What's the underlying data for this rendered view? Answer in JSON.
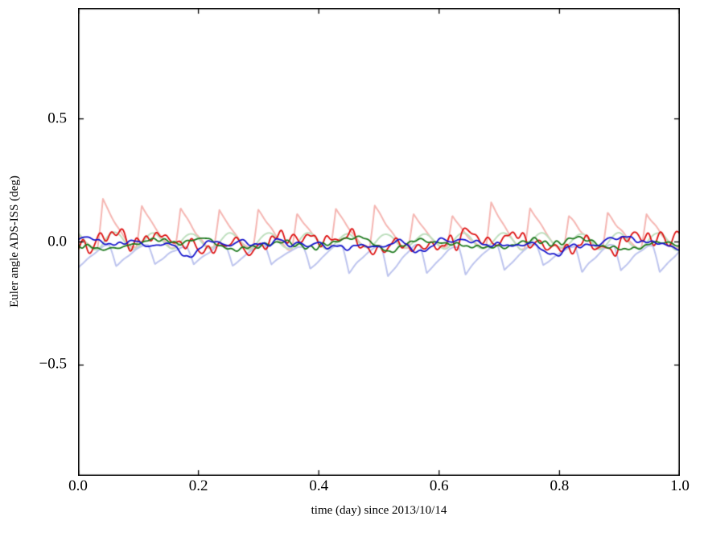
{
  "figure": {
    "background": "#ffffff",
    "frame_color": "#000000"
  },
  "chart_data": {
    "type": "line",
    "title": "",
    "xlabel": "time (day) since 2013/10/14",
    "ylabel": "Euler angle ADS-ISS (deg)",
    "xlim": [
      0.0,
      1.0
    ],
    "ylim": [
      -0.95,
      0.95
    ],
    "grid": false,
    "legend": "none",
    "tick_direction": "in",
    "cycles_per_day": 15.5,
    "n_points": 1500,
    "xticks": [
      {
        "label": "0.0",
        "value": 0.0
      },
      {
        "label": "0.2",
        "value": 0.2
      },
      {
        "label": "0.4",
        "value": 0.4
      },
      {
        "label": "0.6",
        "value": 0.6
      },
      {
        "label": "0.8",
        "value": 0.8
      },
      {
        "label": "1.0",
        "value": 1.0
      }
    ],
    "yticks": [
      {
        "label": "0.5",
        "value": 0.5
      },
      {
        "label": "0.0",
        "value": 0.0
      },
      {
        "label": "−0.5",
        "value": -0.5
      }
    ],
    "series": [
      {
        "name": "pale-red-raw",
        "description": "periodic upward spikes to ~+0.15 deg, ~15.5 cycles/day, baseline ~-0.02",
        "kind": "spike",
        "sign": 1,
        "amp": 0.16,
        "base": -0.025,
        "attack": 0.14,
        "phase": 0.5,
        "noise": 0.012,
        "color": "#f5b6b2",
        "width": 2.0,
        "seed": 7
      },
      {
        "name": "pale-green-raw",
        "description": "small oscillation ~±0.035 deg at ~15.5 cycles/day around 0",
        "kind": "sine",
        "sign": 1,
        "amp": 0.032,
        "base": 0.004,
        "attack": 0.0,
        "phase": 2.0,
        "noise": 0.012,
        "color": "#bedfbe",
        "width": 2.0,
        "seed": 21
      },
      {
        "name": "pale-blue-raw",
        "description": "periodic downward dips to ~-0.12 deg, ~15.5 cycles/day, baseline ~-0.02",
        "kind": "spike",
        "sign": -1,
        "amp": 0.105,
        "base": -0.015,
        "attack": 0.18,
        "phase": 0.2,
        "noise": 0.01,
        "color": "#bdc4ee",
        "width": 2.0,
        "seed": 13
      },
      {
        "name": "red-filtered",
        "description": "noisy line around 0, excursions ~±0.06 deg",
        "kind": "noise",
        "sign": 1,
        "amp": 0.058,
        "base": -0.002,
        "attack": 0.0,
        "phase": 0.0,
        "noise": 0.0,
        "color": "#dd1111",
        "width": 1.8,
        "seed": 31
      },
      {
        "name": "green-filtered",
        "description": "noisy line around 0, excursions ~±0.035 deg",
        "kind": "noise",
        "sign": 1,
        "amp": 0.034,
        "base": -0.008,
        "attack": 0.0,
        "phase": 0.0,
        "noise": 0.0,
        "color": "#1e7a1e",
        "width": 1.8,
        "seed": 41
      },
      {
        "name": "blue-filtered",
        "description": "noisy line around 0, excursions ~±0.05 deg",
        "kind": "noise",
        "sign": 1,
        "amp": 0.05,
        "base": -0.012,
        "attack": 0.0,
        "phase": 0.0,
        "noise": 0.0,
        "color": "#1515cc",
        "width": 1.8,
        "seed": 51
      }
    ]
  }
}
